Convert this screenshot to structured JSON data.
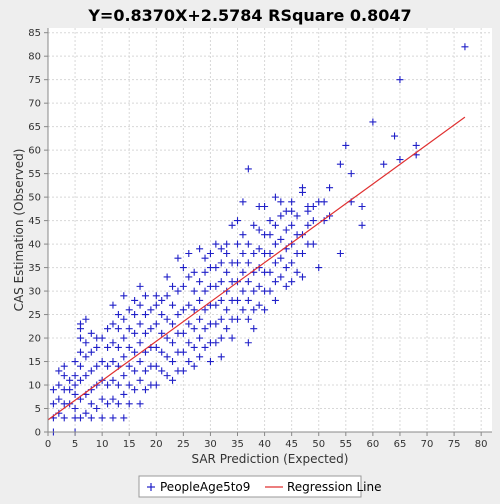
{
  "chart_data": {
    "type": "scatter",
    "title": "Y=0.8370X+2.5784    RSquare 0.8047",
    "xlabel": "SAR Prediction (Expected)",
    "ylabel": "CAS Estimation (Observed)",
    "xlim": [
      0,
      82
    ],
    "ylim": [
      0,
      86
    ],
    "x_ticks": [
      0,
      5,
      10,
      15,
      20,
      25,
      30,
      35,
      40,
      45,
      50,
      55,
      60,
      65,
      70,
      75,
      80
    ],
    "y_ticks": [
      0,
      5,
      10,
      15,
      20,
      25,
      30,
      35,
      40,
      45,
      50,
      55,
      60,
      65,
      70,
      75,
      80,
      85
    ],
    "grid": true,
    "legend": "bottom",
    "colors": {
      "points": "#2020c8",
      "regression": "#e03030",
      "grid": "#d8d8d8",
      "plot_bg": "#ffffff",
      "page_bg": "#eeeeee"
    },
    "regression": {
      "name": "Regression Line",
      "slope": 0.837,
      "intercept": 2.5784,
      "x_range": [
        0,
        77
      ]
    },
    "series": [
      {
        "name": "PeopleAge5to9",
        "marker": "plus",
        "points": [
          [
            1,
            0
          ],
          [
            1,
            3
          ],
          [
            1,
            6
          ],
          [
            1,
            9
          ],
          [
            2,
            4
          ],
          [
            2,
            7
          ],
          [
            2,
            10
          ],
          [
            2,
            13
          ],
          [
            3,
            3
          ],
          [
            3,
            6
          ],
          [
            3,
            9
          ],
          [
            3,
            12
          ],
          [
            3,
            14
          ],
          [
            4,
            6
          ],
          [
            4,
            9
          ],
          [
            4,
            11
          ],
          [
            5,
            0
          ],
          [
            5,
            3
          ],
          [
            5,
            5
          ],
          [
            5,
            8
          ],
          [
            5,
            10
          ],
          [
            5,
            12
          ],
          [
            5,
            15
          ],
          [
            6,
            3
          ],
          [
            6,
            7
          ],
          [
            6,
            11
          ],
          [
            6,
            14
          ],
          [
            6,
            17
          ],
          [
            6,
            20
          ],
          [
            6,
            22
          ],
          [
            6,
            23
          ],
          [
            7,
            4
          ],
          [
            7,
            8
          ],
          [
            7,
            12
          ],
          [
            7,
            16
          ],
          [
            7,
            19
          ],
          [
            7,
            24
          ],
          [
            8,
            3
          ],
          [
            8,
            6
          ],
          [
            8,
            9
          ],
          [
            8,
            13
          ],
          [
            8,
            17
          ],
          [
            8,
            21
          ],
          [
            9,
            5
          ],
          [
            9,
            10
          ],
          [
            9,
            14
          ],
          [
            9,
            18
          ],
          [
            9,
            20
          ],
          [
            10,
            3
          ],
          [
            10,
            7
          ],
          [
            10,
            11
          ],
          [
            10,
            15
          ],
          [
            10,
            20
          ],
          [
            11,
            6
          ],
          [
            11,
            10
          ],
          [
            11,
            14
          ],
          [
            11,
            18
          ],
          [
            11,
            22
          ],
          [
            12,
            3
          ],
          [
            12,
            7
          ],
          [
            12,
            11
          ],
          [
            12,
            15
          ],
          [
            12,
            19
          ],
          [
            12,
            23
          ],
          [
            12,
            27
          ],
          [
            13,
            6
          ],
          [
            13,
            10
          ],
          [
            13,
            14
          ],
          [
            13,
            18
          ],
          [
            13,
            22
          ],
          [
            13,
            25
          ],
          [
            14,
            3
          ],
          [
            14,
            8
          ],
          [
            14,
            12
          ],
          [
            14,
            16
          ],
          [
            14,
            20
          ],
          [
            14,
            24
          ],
          [
            14,
            29
          ],
          [
            15,
            6
          ],
          [
            15,
            10
          ],
          [
            15,
            14
          ],
          [
            15,
            18
          ],
          [
            15,
            22
          ],
          [
            15,
            26
          ],
          [
            16,
            9
          ],
          [
            16,
            13
          ],
          [
            16,
            17
          ],
          [
            16,
            21
          ],
          [
            16,
            25
          ],
          [
            16,
            28
          ],
          [
            17,
            6
          ],
          [
            17,
            11
          ],
          [
            17,
            15
          ],
          [
            17,
            19
          ],
          [
            17,
            23
          ],
          [
            17,
            27
          ],
          [
            17,
            31
          ],
          [
            18,
            9
          ],
          [
            18,
            13
          ],
          [
            18,
            17
          ],
          [
            18,
            21
          ],
          [
            18,
            25
          ],
          [
            18,
            29
          ],
          [
            19,
            10
          ],
          [
            19,
            14
          ],
          [
            19,
            18
          ],
          [
            19,
            22
          ],
          [
            19,
            26
          ],
          [
            20,
            10
          ],
          [
            20,
            14
          ],
          [
            20,
            18
          ],
          [
            20,
            23
          ],
          [
            20,
            27
          ],
          [
            20,
            29
          ],
          [
            21,
            13
          ],
          [
            21,
            17
          ],
          [
            21,
            21
          ],
          [
            21,
            25
          ],
          [
            21,
            28
          ],
          [
            22,
            12
          ],
          [
            22,
            16
          ],
          [
            22,
            20
          ],
          [
            22,
            24
          ],
          [
            22,
            29
          ],
          [
            22,
            33
          ],
          [
            23,
            11
          ],
          [
            23,
            15
          ],
          [
            23,
            19
          ],
          [
            23,
            23
          ],
          [
            23,
            27
          ],
          [
            23,
            31
          ],
          [
            24,
            13
          ],
          [
            24,
            17
          ],
          [
            24,
            21
          ],
          [
            24,
            25
          ],
          [
            24,
            30
          ],
          [
            24,
            37
          ],
          [
            25,
            13
          ],
          [
            25,
            17
          ],
          [
            25,
            21
          ],
          [
            25,
            26
          ],
          [
            25,
            31
          ],
          [
            25,
            35
          ],
          [
            26,
            15
          ],
          [
            26,
            19
          ],
          [
            26,
            23
          ],
          [
            26,
            27
          ],
          [
            26,
            33
          ],
          [
            26,
            38
          ],
          [
            27,
            14
          ],
          [
            27,
            18
          ],
          [
            27,
            22
          ],
          [
            27,
            26
          ],
          [
            27,
            30
          ],
          [
            27,
            34
          ],
          [
            28,
            16
          ],
          [
            28,
            20
          ],
          [
            28,
            24
          ],
          [
            28,
            28
          ],
          [
            28,
            32
          ],
          [
            28,
            39
          ],
          [
            29,
            18
          ],
          [
            29,
            22
          ],
          [
            29,
            26
          ],
          [
            29,
            30
          ],
          [
            29,
            34
          ],
          [
            29,
            37
          ],
          [
            30,
            15
          ],
          [
            30,
            19
          ],
          [
            30,
            23
          ],
          [
            30,
            27
          ],
          [
            30,
            31
          ],
          [
            30,
            35
          ],
          [
            30,
            38
          ],
          [
            31,
            19
          ],
          [
            31,
            23
          ],
          [
            31,
            27
          ],
          [
            31,
            31
          ],
          [
            31,
            35
          ],
          [
            31,
            40
          ],
          [
            32,
            16
          ],
          [
            32,
            20
          ],
          [
            32,
            24
          ],
          [
            32,
            28
          ],
          [
            32,
            32
          ],
          [
            32,
            36
          ],
          [
            32,
            39
          ],
          [
            33,
            22
          ],
          [
            33,
            26
          ],
          [
            33,
            30
          ],
          [
            33,
            34
          ],
          [
            33,
            38
          ],
          [
            33,
            40
          ],
          [
            34,
            20
          ],
          [
            34,
            24
          ],
          [
            34,
            28
          ],
          [
            34,
            32
          ],
          [
            34,
            36
          ],
          [
            34,
            44
          ],
          [
            35,
            24
          ],
          [
            35,
            28
          ],
          [
            35,
            32
          ],
          [
            35,
            36
          ],
          [
            35,
            40
          ],
          [
            35,
            45
          ],
          [
            36,
            26
          ],
          [
            36,
            30
          ],
          [
            36,
            34
          ],
          [
            36,
            38
          ],
          [
            36,
            42
          ],
          [
            36,
            49
          ],
          [
            37,
            19
          ],
          [
            37,
            24
          ],
          [
            37,
            28
          ],
          [
            37,
            32
          ],
          [
            37,
            36
          ],
          [
            37,
            40
          ],
          [
            37,
            56
          ],
          [
            38,
            22
          ],
          [
            38,
            26
          ],
          [
            38,
            30
          ],
          [
            38,
            34
          ],
          [
            38,
            38
          ],
          [
            38,
            44
          ],
          [
            39,
            27
          ],
          [
            39,
            31
          ],
          [
            39,
            35
          ],
          [
            39,
            39
          ],
          [
            39,
            43
          ],
          [
            39,
            48
          ],
          [
            40,
            26
          ],
          [
            40,
            30
          ],
          [
            40,
            34
          ],
          [
            40,
            38
          ],
          [
            40,
            42
          ],
          [
            40,
            48
          ],
          [
            41,
            30
          ],
          [
            41,
            34
          ],
          [
            41,
            38
          ],
          [
            41,
            42
          ],
          [
            41,
            45
          ],
          [
            42,
            28
          ],
          [
            42,
            32
          ],
          [
            42,
            36
          ],
          [
            42,
            40
          ],
          [
            42,
            44
          ],
          [
            42,
            50
          ],
          [
            43,
            33
          ],
          [
            43,
            37
          ],
          [
            43,
            41
          ],
          [
            43,
            46
          ],
          [
            43,
            49
          ],
          [
            44,
            31
          ],
          [
            44,
            35
          ],
          [
            44,
            39
          ],
          [
            44,
            43
          ],
          [
            44,
            47
          ],
          [
            45,
            32
          ],
          [
            45,
            36
          ],
          [
            45,
            40
          ],
          [
            45,
            44
          ],
          [
            45,
            47
          ],
          [
            45,
            49
          ],
          [
            46,
            34
          ],
          [
            46,
            38
          ],
          [
            46,
            42
          ],
          [
            46,
            46
          ],
          [
            47,
            33
          ],
          [
            47,
            38
          ],
          [
            47,
            42
          ],
          [
            47,
            51
          ],
          [
            47,
            52
          ],
          [
            48,
            40
          ],
          [
            48,
            44
          ],
          [
            48,
            47
          ],
          [
            48,
            48
          ],
          [
            49,
            40
          ],
          [
            49,
            45
          ],
          [
            49,
            48
          ],
          [
            50,
            35
          ],
          [
            50,
            49
          ],
          [
            51,
            45
          ],
          [
            51,
            49
          ],
          [
            52,
            46
          ],
          [
            52,
            52
          ],
          [
            54,
            38
          ],
          [
            54,
            57
          ],
          [
            55,
            61
          ],
          [
            56,
            49
          ],
          [
            56,
            55
          ],
          [
            58,
            44
          ],
          [
            58,
            48
          ],
          [
            60,
            66
          ],
          [
            62,
            57
          ],
          [
            64,
            63
          ],
          [
            65,
            58
          ],
          [
            65,
            75
          ],
          [
            68,
            59
          ],
          [
            68,
            61
          ],
          [
            77,
            82
          ]
        ]
      }
    ]
  }
}
